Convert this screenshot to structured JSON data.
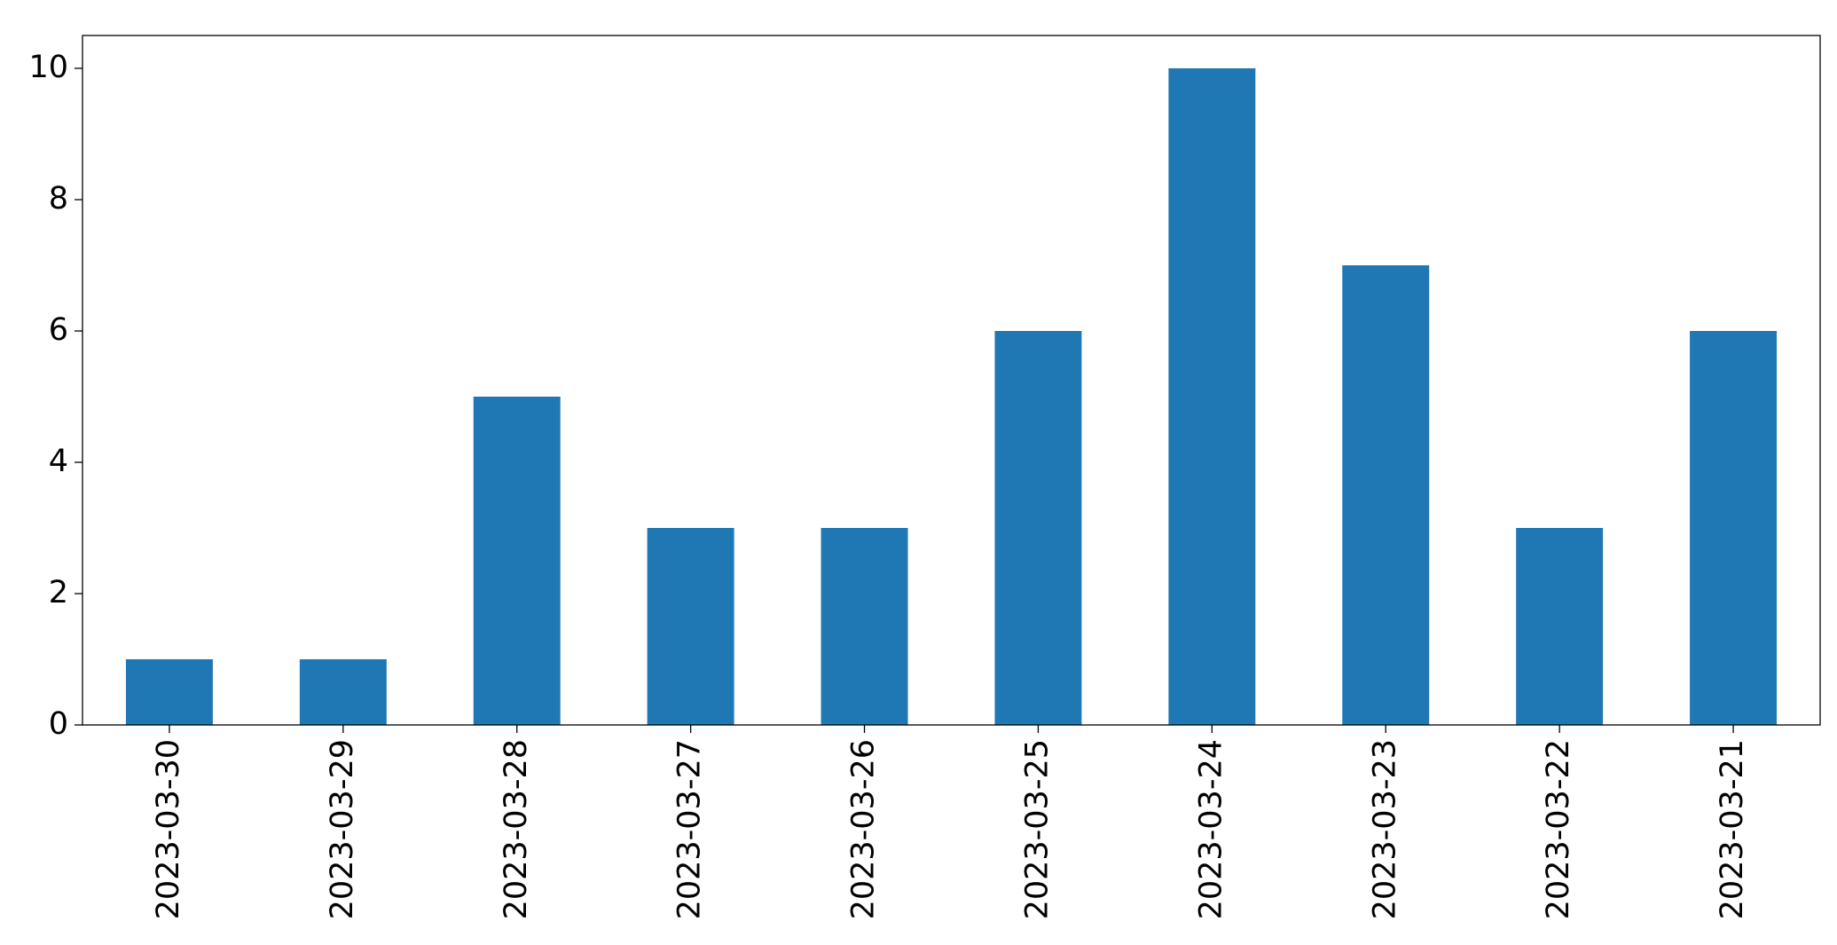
{
  "chart_data": {
    "type": "bar",
    "categories": [
      "2023-03-30",
      "2023-03-29",
      "2023-03-28",
      "2023-03-27",
      "2023-03-26",
      "2023-03-25",
      "2023-03-24",
      "2023-03-23",
      "2023-03-22",
      "2023-03-21"
    ],
    "values": [
      1,
      1,
      5,
      3,
      3,
      6,
      10,
      7,
      3,
      6
    ],
    "color": "#1f77b4",
    "ylim": [
      0,
      10.5
    ],
    "yticks": [
      0,
      2,
      4,
      6,
      8,
      10
    ],
    "grid": false
  }
}
